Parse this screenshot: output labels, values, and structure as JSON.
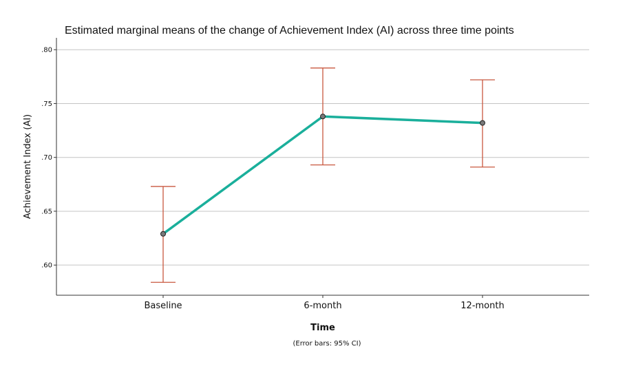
{
  "chart_data": {
    "type": "line",
    "title": "Estimated marginal means of the change of Achievement Index (AI) across three time points",
    "xlabel": "Time",
    "ylabel": "Achievement Index (AI)",
    "note": "(Error bars: 95% CI)",
    "categories": [
      "Baseline",
      "6-month",
      "12-month"
    ],
    "series": [
      {
        "values": [
          0.629,
          0.738,
          0.732
        ],
        "ci_lower": [
          0.584,
          0.693,
          0.691
        ],
        "ci_upper": [
          0.673,
          0.783,
          0.772
        ],
        "color": "#1aaf9b"
      }
    ],
    "error_bar_color": "#c8573e",
    "marker_color": "#7a7a7a",
    "ylim": [
      0.572,
      0.811
    ],
    "yticks": [
      0.6,
      0.65,
      0.7,
      0.75,
      0.8
    ],
    "ytick_labels": [
      ".60",
      ".65",
      ".70",
      ".75",
      ".80"
    ],
    "grid": true
  }
}
